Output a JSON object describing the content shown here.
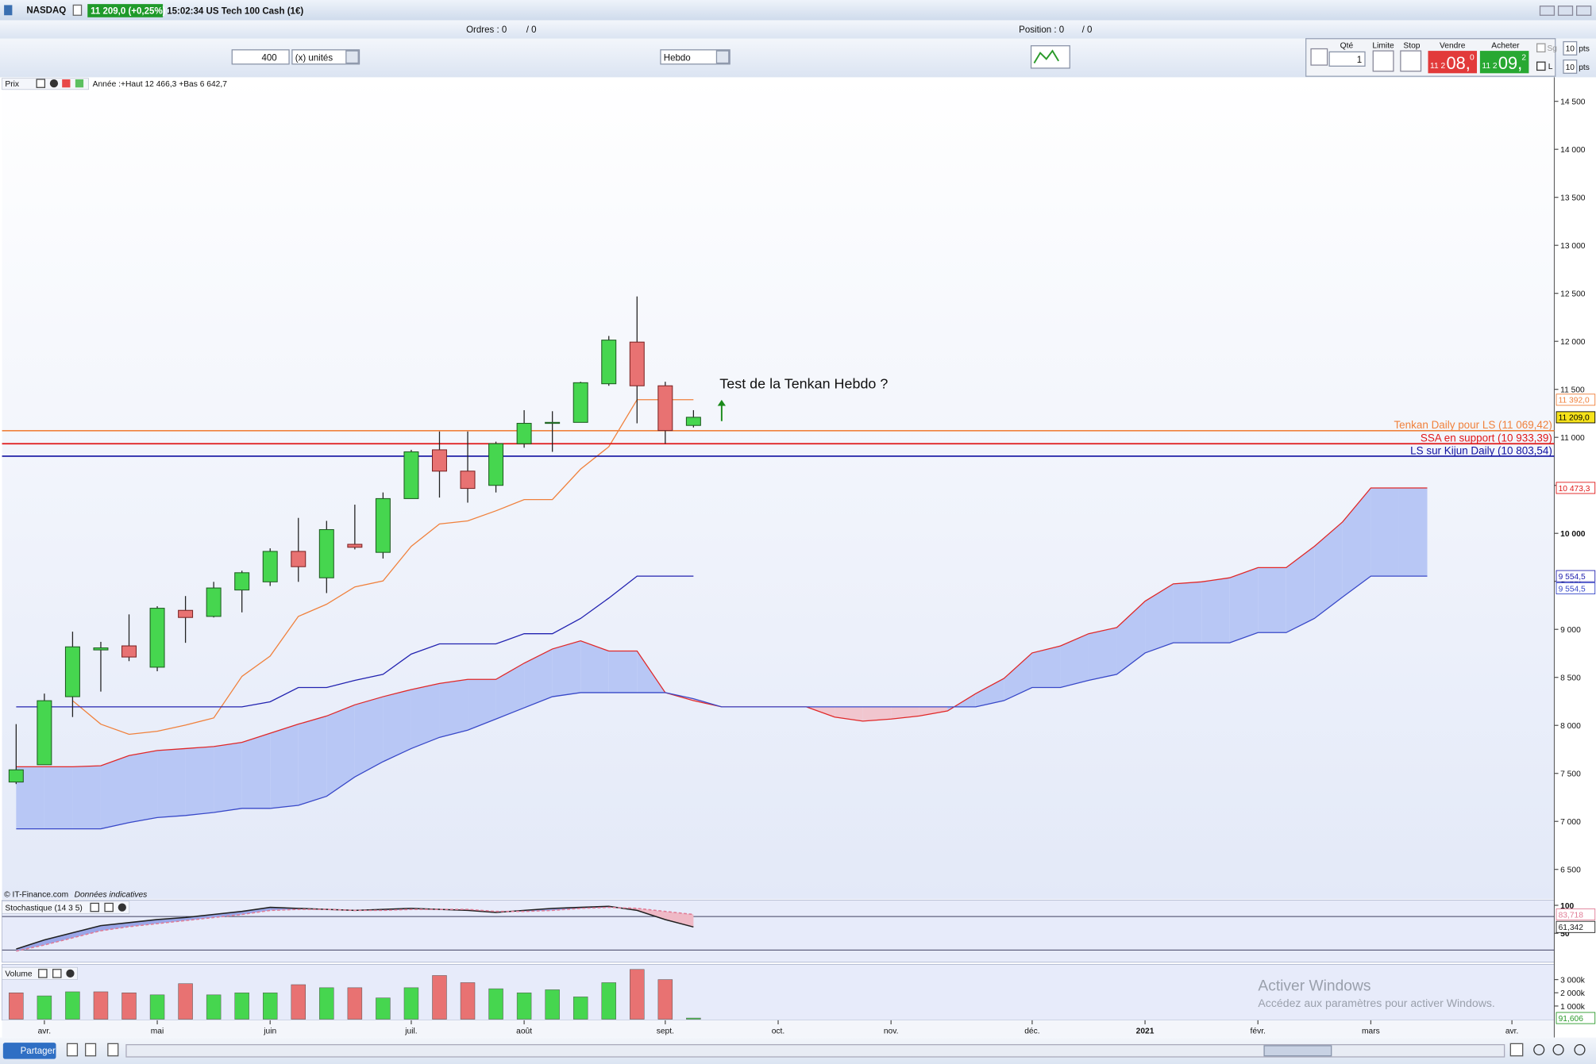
{
  "ui": {
    "instrument": "NASDAQ",
    "price_change": "11 209,0 (+0,25%)",
    "time_name": "15:02:34 US Tech 100 Cash (1€)",
    "orders_label": "Ordres : 0",
    "orders_count": "/ 0",
    "position_label": "Position : 0",
    "position_count": "/ 0",
    "quantity": "400",
    "unit": "(x) unités",
    "period": "Hebdo",
    "qty_label": "Qté",
    "qty": "1",
    "limit": "Limite",
    "stop": "Stop",
    "sell": "Vendre",
    "buy": "Acheter",
    "sell_price": [
      "11 2",
      "08,",
      "0"
    ],
    "buy_price": [
      "11 2",
      "09,",
      "2"
    ],
    "sg": "Sg",
    "sg_pts": "10",
    "sg_unit": "pts",
    "l": "L",
    "l_pts": "10",
    "l_unit": "pts",
    "share": "Partager",
    "watermark_title": "Activer Windows",
    "watermark_text": "Accédez aux paramètres pour activer Windows."
  },
  "chart_data": [
    {
      "type": "candlestick",
      "title": "Prix",
      "subtitle": "Année :+Haut 12 466,3 +Bas 6 642,7",
      "annotation": "Test de la Tenkan Hebdo ?",
      "footer": "© IT-Finance.com",
      "footer_note": "Données indicatives",
      "categories": [
        null,
        "avr.",
        null,
        null,
        null,
        "mai",
        null,
        null,
        null,
        "juin",
        null,
        null,
        null,
        null,
        "juil.",
        null,
        null,
        null,
        "août",
        null,
        null,
        null,
        null,
        "sept.",
        null,
        null,
        null,
        "oct.",
        null,
        null,
        null,
        "nov.",
        null,
        null,
        null,
        null,
        "déc.",
        null,
        null,
        null,
        "2021",
        null,
        null,
        null,
        "févr.",
        null,
        null,
        null,
        "mars",
        null,
        null,
        null,
        null,
        "avr.",
        null
      ],
      "open": [
        7410,
        7590,
        8299,
        8786,
        8828,
        8606,
        9198,
        9135,
        9410,
        9495,
        9812,
        9537,
        9886,
        9802,
        10362,
        10870,
        10648,
        10500,
        10934,
        11146,
        11156,
        11558,
        11992,
        11537,
        11124,
        null,
        null,
        null,
        null,
        null,
        null,
        null,
        null,
        null,
        null,
        null,
        null,
        null,
        null,
        null,
        null,
        null,
        null,
        null,
        null,
        null,
        null,
        null,
        null,
        null,
        null,
        null,
        null,
        null,
        null
      ],
      "high": [
        8013,
        8331,
        8976,
        8870,
        9156,
        9241,
        9347,
        9495,
        9611,
        9844,
        10161,
        10130,
        10299,
        10426,
        10870,
        11061,
        11061,
        10955,
        11283,
        11272,
        11579,
        12056,
        12468,
        11579,
        11283,
        null,
        null,
        null,
        null,
        null,
        null,
        null,
        null,
        null,
        null,
        null,
        null,
        null,
        null,
        null,
        null,
        null,
        null,
        null,
        null,
        null,
        null,
        null,
        null,
        null,
        null,
        null,
        null,
        null,
        null
      ],
      "low": [
        7389,
        7590,
        8087,
        8352,
        8669,
        8564,
        8860,
        9124,
        9177,
        9452,
        9495,
        9378,
        9833,
        9738,
        10362,
        10373,
        10320,
        10426,
        10892,
        10849,
        11156,
        11537,
        11146,
        10934,
        11103,
        null,
        null,
        null,
        null,
        null,
        null,
        null,
        null,
        null,
        null,
        null,
        null,
        null,
        null,
        null,
        null,
        null,
        null,
        null,
        null,
        null,
        null,
        null,
        null,
        null,
        null,
        null,
        null,
        null,
        null
      ],
      "close": [
        7537,
        8257,
        8818,
        8807,
        8712,
        9220,
        9124,
        9431,
        9590,
        9812,
        9653,
        10039,
        9855,
        10362,
        10849,
        10648,
        10468,
        10934,
        11146,
        11156,
        11569,
        12013,
        11537,
        11071,
        11209,
        null,
        null,
        null,
        null,
        null,
        null,
        null,
        null,
        null,
        null,
        null,
        null,
        null,
        null,
        null,
        null,
        null,
        null,
        null,
        null,
        null,
        null,
        null,
        null,
        null,
        null,
        null,
        null,
        null,
        null
      ],
      "up_color": "#46d64f",
      "down_color": "#e87272",
      "lines": [
        {
          "color": "#f0813c",
          "values": [
            null,
            null,
            8257,
            8013,
            7907,
            7939,
            8003,
            8077,
            8511,
            8722,
            9135,
            9262,
            9442,
            9505,
            9865,
            10098,
            10130,
            10235,
            10352,
            10352,
            10669,
            10902,
            11392,
            11392,
            11392,
            null,
            null,
            null,
            null,
            null,
            null,
            null,
            null,
            null,
            null,
            null,
            null,
            null,
            null,
            null,
            null,
            null,
            null,
            null,
            null,
            null,
            null,
            null,
            null,
            null,
            null,
            null,
            null,
            null,
            null
          ]
        },
        {
          "color": "#2222b0",
          "values": [
            8193,
            8193,
            8193,
            8193,
            8193,
            8193,
            8193,
            8193,
            8193,
            8246,
            8394,
            8394,
            8468,
            8532,
            8743,
            8849,
            8849,
            8849,
            8955,
            8955,
            9114,
            9325,
            9554.5,
            9554.5,
            9554.5,
            null,
            null,
            null,
            null,
            null,
            null,
            null,
            null,
            null,
            null,
            null,
            null,
            null,
            null,
            null,
            null,
            null,
            null,
            null,
            null,
            null,
            null,
            null,
            null,
            null,
            null,
            null,
            null,
            null,
            null
          ]
        }
      ],
      "cloud": {
        "ssa": {
          "color": "#e02828",
          "values": [
            7569,
            7569,
            7569,
            7579,
            7685,
            7738,
            7759,
            7780,
            7823,
            7918,
            8013,
            8098,
            8214,
            8299,
            8373,
            8437,
            8479,
            8479,
            8648,
            8796,
            8881,
            8775,
            8775,
            8341,
            8257,
            8193,
            8193,
            8193,
            8193,
            8087,
            8045,
            8066,
            8098,
            8151,
            8331,
            8489,
            8754,
            8828,
            8955,
            9019,
            9294,
            9474,
            9495,
            9537,
            9643,
            9643,
            9865,
            10119,
            10473.3,
            10473.3,
            10473.3,
            null,
            null,
            null,
            null
          ]
        },
        "ssb": {
          "color": "#3848c8",
          "values": [
            6923,
            6923,
            6923,
            6923,
            6987,
            7040,
            7061,
            7093,
            7135,
            7135,
            7167,
            7262,
            7463,
            7622,
            7759,
            7875,
            7950,
            8066,
            8183,
            8299,
            8341,
            8341,
            8341,
            8341,
            8278,
            8193,
            8193,
            8193,
            8193,
            8193,
            8193,
            8193,
            8193,
            8193,
            8193,
            8257,
            8394,
            8394,
            8468,
            8532,
            8754,
            8860,
            8860,
            8860,
            8966,
            8966,
            9114,
            9336,
            9554.5,
            9554.5,
            9554.5,
            null,
            null,
            null,
            null
          ]
        },
        "fill_up": "#b8c7f5",
        "fill_down": "#f1c6cf"
      },
      "ylim": [
        6200,
        14750
      ],
      "yticks": [
        {
          "value": 6500,
          "label": "6 500"
        },
        {
          "value": 7000,
          "label": "7 000"
        },
        {
          "value": 7500,
          "label": "7 500"
        },
        {
          "value": 8000,
          "label": "8 000"
        },
        {
          "value": 8500,
          "label": "8 500"
        },
        {
          "value": 9000,
          "label": "9 000"
        },
        {
          "value": 9500,
          "label": "9 500"
        },
        {
          "value": 10000,
          "label": "10 000"
        },
        {
          "value": 10500,
          "label": "10 500"
        },
        {
          "value": 11000,
          "label": "11 000"
        },
        {
          "value": 11500,
          "label": "11 500"
        },
        {
          "value": 12000,
          "label": "12 000"
        },
        {
          "value": 12500,
          "label": "12 500"
        },
        {
          "value": 13000,
          "label": "13 000"
        },
        {
          "value": 13500,
          "label": "13 500"
        },
        {
          "value": 14000,
          "label": "14 000"
        },
        {
          "value": 14500,
          "label": "14 500"
        }
      ],
      "hlines": [
        {
          "value": 11069.42,
          "label": "Tenkan Daily pour LS (11 069,42)",
          "color": "#f0813c"
        },
        {
          "value": 10933.39,
          "label": "SSA en support (10 933,39)",
          "color": "#e01818"
        },
        {
          "value": 10803.54,
          "label": "LS sur Kijun Daily (10 803,54)",
          "color": "#1010a0"
        }
      ],
      "price_markers": [
        {
          "value": 11392,
          "label": "11 392,0",
          "color": "#f0813c"
        },
        {
          "value": 11209,
          "label": "11 209,0",
          "color": "#000000",
          "background": "#f6e21a"
        },
        {
          "value": 10473.3,
          "label": "10 473,3",
          "color": "#e01818"
        },
        {
          "value": 9554.5,
          "label": "9 554,5",
          "color": "#2222b0"
        },
        {
          "value": 9554.5,
          "label": "9 554,5",
          "color": "#3848c8"
        }
      ]
    },
    {
      "type": "line",
      "title": "Stochastique (14 3 5)",
      "ylim": [
        0,
        100
      ],
      "yticks": [
        100,
        50
      ],
      "levels": [
        80,
        20
      ],
      "series": [
        {
          "color": "#202020",
          "values": [
            21.8,
            38.2,
            50.9,
            63.6,
            69.1,
            74.5,
            78.2,
            83.6,
            89.1,
            96.4,
            94.5,
            92.7,
            90.9,
            92.7,
            94.5,
            92.7,
            90.9,
            87.3,
            90.9,
            94.5,
            96.4,
            98.2,
            90.9,
            74.5,
            61.342
          ]
        },
        {
          "color": "#e07c96",
          "dashed": true,
          "values": [
            18.2,
            29.1,
            41.8,
            54.5,
            61.8,
            67.3,
            72.7,
            78.2,
            83.6,
            90.9,
            92.7,
            92.7,
            90.9,
            90.9,
            92.7,
            92.7,
            92.7,
            89.1,
            89.1,
            90.9,
            94.5,
            96.4,
            94.5,
            89.1,
            83.718
          ]
        }
      ],
      "fill_up": "#9aa6e8",
      "fill_down": "#efb9c6",
      "markers": [
        {
          "value": 83.718,
          "label": "83,718",
          "color": "#e07c96"
        },
        {
          "value": 61.342,
          "label": "61,342",
          "color": "#202020"
        }
      ]
    },
    {
      "type": "bar",
      "title": "Volume",
      "ylim": [
        0,
        4000
      ],
      "yticks": [
        {
          "value": 3000,
          "label": "3 000k"
        },
        {
          "value": 2000,
          "label": "2 000k"
        },
        {
          "value": 1000,
          "label": "1 000k"
        }
      ],
      "values": [
        2000,
        1769,
        2077,
        2077,
        2000,
        1846,
        2692,
        1846,
        2000,
        2000,
        2615,
        2385,
        2385,
        1615,
        2385,
        3308,
        2769,
        2308,
        2000,
        2231,
        1692,
        2769,
        3769,
        3000,
        91.606
      ],
      "colors": [
        "#e87272",
        "#46d64f",
        "#46d64f",
        "#e87272",
        "#e87272",
        "#46d64f",
        "#e87272",
        "#46d64f",
        "#46d64f",
        "#46d64f",
        "#e87272",
        "#46d64f",
        "#e87272",
        "#46d64f",
        "#46d64f",
        "#e87272",
        "#e87272",
        "#46d64f",
        "#46d64f",
        "#46d64f",
        "#46d64f",
        "#46d64f",
        "#e87272",
        "#e87272",
        "#46d64f"
      ],
      "markers": [
        {
          "value": 91.606,
          "label": "91,606",
          "color": "#2a9a2a"
        }
      ]
    }
  ]
}
